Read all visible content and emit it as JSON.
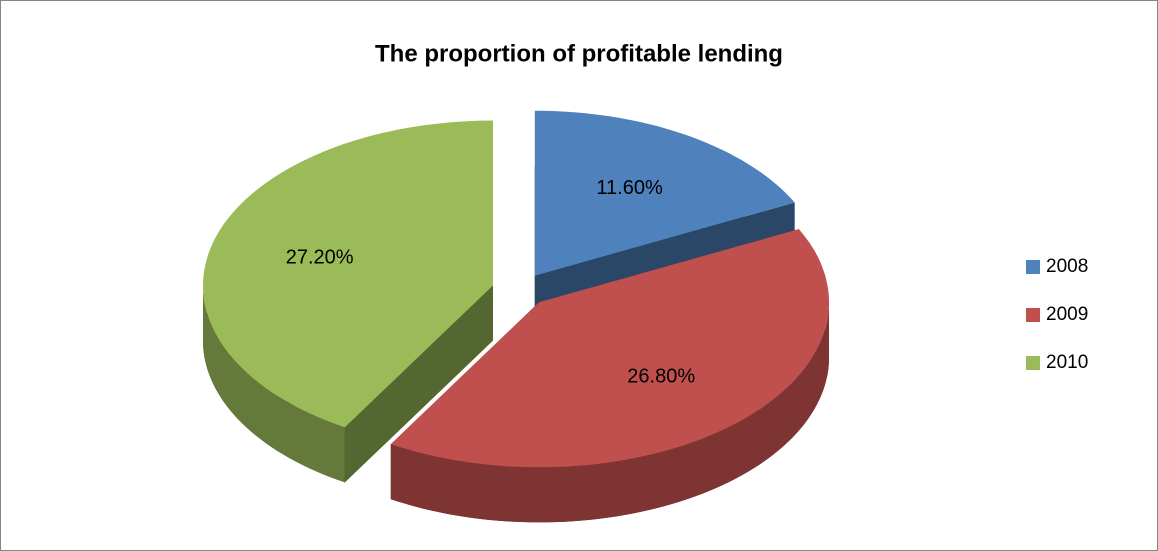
{
  "chart_data": {
    "type": "pie",
    "title": "The proportion of profitable lending",
    "categories": [
      "2008",
      "2009",
      "2010"
    ],
    "values": [
      11.6,
      26.8,
      27.2
    ],
    "value_labels": [
      "11.60%",
      "26.80%",
      "27.20%"
    ],
    "colors": [
      "#4f81bd",
      "#c0504d",
      "#9bbb59"
    ],
    "legend": "right"
  }
}
